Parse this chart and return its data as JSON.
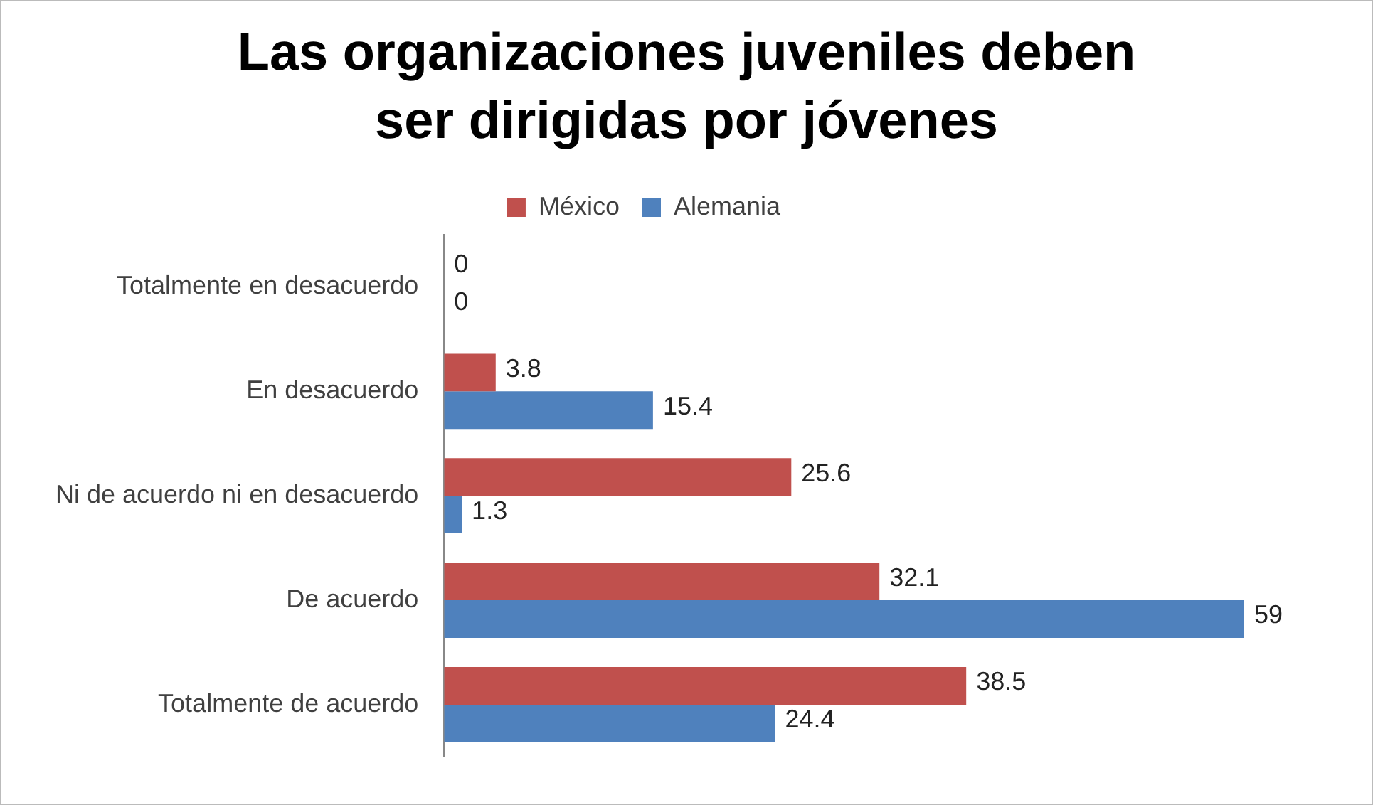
{
  "chart_data": {
    "type": "bar",
    "orientation": "horizontal",
    "title": "Las organizaciones juveniles deben ser dirigidas por jóvenes",
    "categories": [
      "Totalmente en desacuerdo",
      "En desacuerdo",
      "Ni de acuerdo ni en desacuerdo",
      "De acuerdo",
      "Totalmente de acuerdo"
    ],
    "series": [
      {
        "name": "México",
        "color": "#c0504d",
        "values": [
          0,
          3.8,
          25.6,
          32.1,
          38.5
        ]
      },
      {
        "name": "Alemania",
        "color": "#4f81bd",
        "values": [
          0,
          15.4,
          1.3,
          59,
          24.4
        ]
      }
    ],
    "data_labels": true,
    "legend": "top",
    "grid": false
  }
}
